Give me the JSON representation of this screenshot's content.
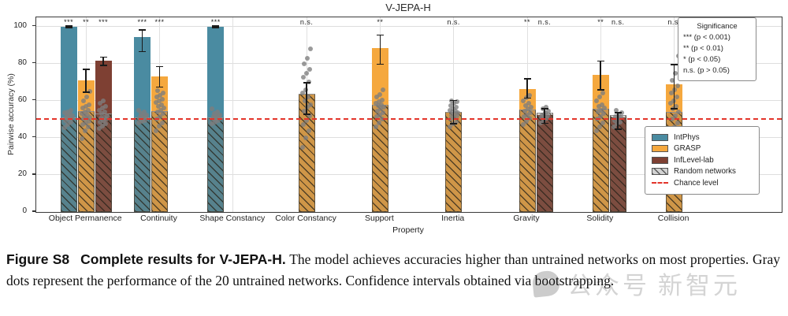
{
  "title": "V-JEPA-H",
  "axes": {
    "xlabel": "Property",
    "ylabel": "Pairwise accuracy (%)",
    "yticks": [
      0,
      20,
      40,
      60,
      80,
      100
    ],
    "ymax": 105
  },
  "colors": {
    "intphys": "#4A8BA1",
    "grasp": "#F5A83E",
    "inflevel": "#7E4033",
    "chance_red": "#E3342A",
    "dot_gray": "#7D7D7D"
  },
  "significance_box": {
    "title": "Significance",
    "lines": [
      "*** (p < 0.001)",
      "** (p < 0.01)",
      "* (p < 0.05)",
      "n.s. (p > 0.05)"
    ]
  },
  "legend": {
    "items": [
      {
        "label": "IntPhys",
        "swatch": "intphys"
      },
      {
        "label": "GRASP",
        "swatch": "grasp"
      },
      {
        "label": "InfLevel-lab",
        "swatch": "inflevel"
      },
      {
        "label": "Random networks",
        "swatch": "hatch"
      },
      {
        "label": "Chance level",
        "swatch": "dash"
      }
    ]
  },
  "chart_data": {
    "type": "bar",
    "title": "V-JEPA-H",
    "xlabel": "Property",
    "ylabel": "Pairwise accuracy (%)",
    "ylim": [
      0,
      105
    ],
    "grid": true,
    "legend_position": "lower right",
    "chance_level": 50,
    "categories": [
      "Object Permanence",
      "Continuity",
      "Shape Constancy",
      "Color Constancy",
      "Support",
      "Inertia",
      "Gravity",
      "Solidity",
      "Collision"
    ],
    "series_names": [
      "IntPhys",
      "GRASP",
      "InfLevel-lab"
    ],
    "groups": [
      {
        "category": "Object Permanence",
        "bars": [
          {
            "dataset": "IntPhys",
            "value": 100,
            "ci": [
              99.4,
              100.4
            ],
            "random_mean": 51,
            "significance": "***",
            "dots": [
              45.5,
              47,
              48.5,
              49.5,
              50,
              50.5,
              51,
              51.5,
              52,
              52.5,
              53,
              53.5,
              54,
              55
            ]
          },
          {
            "dataset": "GRASP",
            "value": 71,
            "ci": [
              64.6,
              77
            ],
            "random_mean": 54.3,
            "significance": "**",
            "dots": [
              39.5,
              44,
              46,
              47,
              48,
              49,
              50,
              50.5,
              51,
              52,
              52.5,
              53,
              54,
              55,
              56,
              57,
              58,
              60,
              62,
              65
            ]
          },
          {
            "dataset": "InfLevel-lab",
            "value": 81.5,
            "ci": [
              79,
              83.5
            ],
            "random_mean": 53,
            "significance": "***",
            "dots": [
              45,
              46.5,
              47.5,
              48.5,
              49.5,
              50,
              50.5,
              51,
              52,
              53,
              54,
              55,
              56,
              57,
              58.5,
              60
            ]
          }
        ]
      },
      {
        "category": "Continuity",
        "bars": [
          {
            "dataset": "IntPhys",
            "value": 94.5,
            "ci": [
              86.6,
              98.3
            ],
            "random_mean": 51,
            "significance": "***",
            "dots": [
              48,
              49,
              49.5,
              50,
              50.5,
              51,
              51.5,
              52,
              52.5,
              53,
              54,
              55
            ]
          },
          {
            "dataset": "GRASP",
            "value": 73,
            "ci": [
              67.4,
              78.4
            ],
            "random_mean": 54.5,
            "significance": "***",
            "dots": [
              44,
              46.5,
              48,
              50,
              51.5,
              53,
              54,
              55,
              56,
              57,
              58,
              59,
              60,
              61,
              62,
              63,
              64,
              65.5
            ]
          }
        ]
      },
      {
        "category": "Shape Constancy",
        "bars": [
          {
            "dataset": "IntPhys",
            "value": 100,
            "ci": [
              99.4,
              100.3
            ],
            "random_mean": 51.2,
            "significance": "***",
            "dots": [
              47.5,
              48.5,
              49.5,
              50,
              50.5,
              51,
              51.5,
              52,
              52.5,
              53,
              54,
              55.5
            ]
          }
        ]
      },
      {
        "category": "Color Constancy",
        "bars": [
          {
            "dataset": "GRASP",
            "value": 63.5,
            "ci": [
              52.7,
              69.7
            ],
            "random_mean": 63.7,
            "significance": "n.s.",
            "dots": [
              35,
              40,
              44,
              47,
              49.5,
              52,
              54.5,
              56.5,
              58,
              60,
              62,
              64,
              66,
              70,
              72.5,
              75,
              77,
              80,
              83,
              88
            ]
          }
        ]
      },
      {
        "category": "Support",
        "bars": [
          {
            "dataset": "GRASP",
            "value": 88.6,
            "ci": [
              79.7,
              95.4
            ],
            "random_mean": 58,
            "significance": "**",
            "dots": [
              46,
              48,
              50,
              51.5,
              52.5,
              53.5,
              54.5,
              55.5,
              56.5,
              57.5,
              58,
              58.5,
              59.5,
              60.5,
              62,
              63.5,
              66
            ]
          }
        ]
      },
      {
        "category": "Inertia",
        "bars": [
          {
            "dataset": "GRASP",
            "value": 54,
            "ci": [
              47.6,
              60.1
            ],
            "random_mean": 54.2,
            "significance": "n.s.",
            "dots": [
              46,
              47.5,
              48.5,
              50,
              51,
              52,
              52.5,
              53,
              53.5,
              54,
              54.5,
              55,
              55.5,
              56.5,
              57.5,
              58.5,
              59.5,
              60
            ]
          }
        ]
      },
      {
        "category": "Gravity",
        "bars": [
          {
            "dataset": "GRASP",
            "value": 66.4,
            "ci": [
              61.4,
              71.8
            ],
            "random_mean": 55.4,
            "significance": "**",
            "dots": [
              47,
              49,
              50.5,
              51.5,
              52.5,
              53.5,
              54.5,
              55.5,
              56.5,
              57.5,
              58.5,
              60,
              61.5,
              63
            ]
          },
          {
            "dataset": "InfLevel-lab",
            "value": 52.3,
            "ci": [
              47.9,
              55.8
            ],
            "random_mean": 53.5,
            "significance": "n.s.",
            "dots": [
              48,
              49.5,
              50.5,
              51,
              51.5,
              52,
              52.5,
              53.5,
              54.5,
              55.5,
              56.5
            ]
          }
        ]
      },
      {
        "category": "Solidity",
        "bars": [
          {
            "dataset": "GRASP",
            "value": 73.9,
            "ci": [
              65.8,
              81.5
            ],
            "random_mean": 55.8,
            "significance": "**",
            "dots": [
              44,
              46,
              48,
              50,
              51.5,
              53,
              54,
              55,
              56,
              57,
              58,
              60,
              62,
              64
            ]
          },
          {
            "dataset": "InfLevel-lab",
            "value": 51.1,
            "ci": [
              44.7,
              53.5
            ],
            "random_mean": 52.3,
            "significance": "n.s.",
            "dots": [
              46,
              47.5,
              48.5,
              49.5,
              50.5,
              51,
              51.5,
              52.5,
              53.5,
              55
            ]
          }
        ]
      },
      {
        "category": "Collision",
        "bars": [
          {
            "dataset": "GRASP",
            "value": 68.9,
            "ci": [
              55.8,
              79.6
            ],
            "random_mean": 54.2,
            "significance": "n.s.",
            "dots": [
              35,
              37.5,
              40,
              44,
              46,
              48,
              50,
              52,
              54,
              55.5,
              57,
              58.5,
              60,
              62,
              64,
              66,
              68,
              71,
              75,
              84
            ]
          }
        ]
      }
    ]
  },
  "caption": {
    "label": "Figure S8",
    "title": "Complete results for V-JEPA-H.",
    "body": "The model achieves accuracies higher than untrained networks on most properties. Gray dots represent the performance of the 20 untrained networks. Confidence intervals obtained via bootstrapping."
  },
  "watermark": {
    "text1": "公众号",
    "text2": "新智元"
  }
}
